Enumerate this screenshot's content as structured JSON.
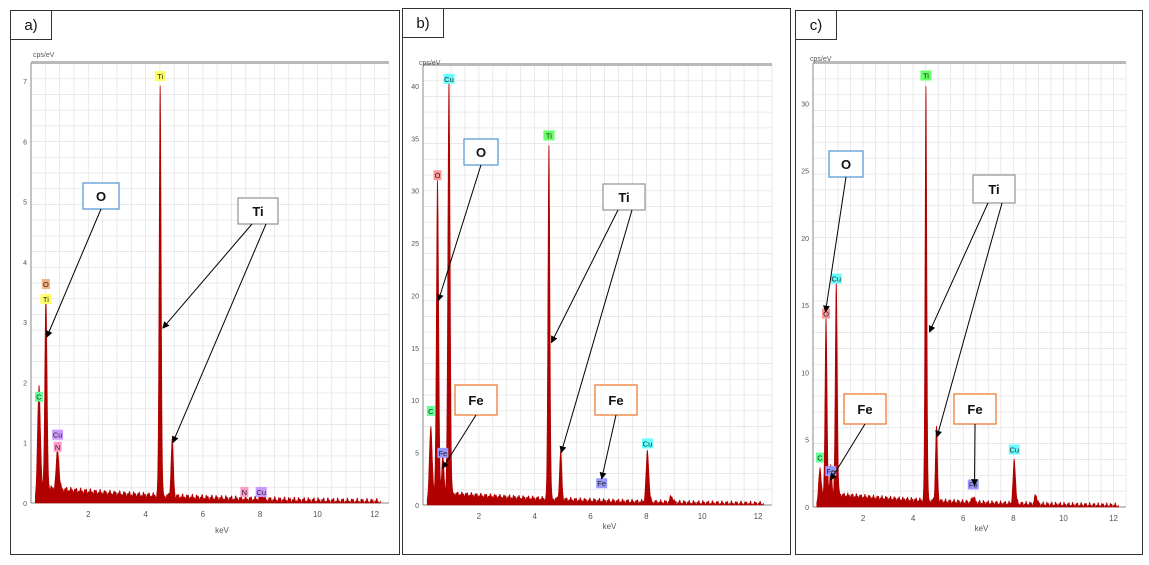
{
  "colors": {
    "spectrum": "#b00000",
    "grid": "#e4e4e4",
    "topbar": "#b9b9b9",
    "box_o": "#5b9bd5",
    "box_ti": "#9a9a9a",
    "box_fe": "#ed7d31"
  },
  "chart_data": [
    {
      "type": "area",
      "panel_label": "a)",
      "ylabel": "cps/eV",
      "xlabel": "keV",
      "xlim": [
        0,
        12.5
      ],
      "ylim": [
        0,
        7.3
      ],
      "x_ticks": [
        "2",
        "4",
        "6",
        "8",
        "10",
        "12"
      ],
      "y_ticks": [
        "0",
        "1",
        "2",
        "3",
        "4",
        "5",
        "6",
        "7"
      ],
      "background_level": 0.25,
      "peaks": [
        {
          "x": 0.28,
          "y": 1.85,
          "w": 0.05
        },
        {
          "x": 0.52,
          "y": 3.2,
          "w": 0.04
        },
        {
          "x": 0.93,
          "y": 0.65,
          "w": 0.05
        },
        {
          "x": 4.51,
          "y": 6.85,
          "w": 0.035
        },
        {
          "x": 4.93,
          "y": 0.95,
          "w": 0.04
        },
        {
          "x": 8.04,
          "y": 0.12,
          "w": 0.05
        }
      ],
      "element_labels": [
        {
          "text": "O",
          "x": 0.52,
          "y": 3.55,
          "color": "#f4b183"
        },
        {
          "text": "Ti",
          "x": 0.52,
          "y": 3.3,
          "color": "#ffff66"
        },
        {
          "text": "C",
          "x": 0.28,
          "y": 1.68,
          "color": "#66ff99"
        },
        {
          "text": "Cu",
          "x": 0.93,
          "y": 1.05,
          "color": "#cc99ff"
        },
        {
          "text": "N",
          "x": 0.93,
          "y": 0.85,
          "color": "#ff99cc"
        },
        {
          "text": "Ti",
          "x": 4.51,
          "y": 7.0,
          "color": "#ffff66"
        },
        {
          "text": "N",
          "x": 7.45,
          "y": 0.1,
          "color": "#ff99cc"
        },
        {
          "text": "Cu",
          "x": 8.04,
          "y": 0.1,
          "color": "#cc99ff"
        }
      ],
      "annotations": [
        {
          "text": "O",
          "style": "o",
          "arrows": [
            {
              "x": 0.55,
              "y": 2.75
            }
          ]
        },
        {
          "text": "Ti",
          "style": "ti",
          "arrows": [
            {
              "x": 4.6,
              "y": 2.9
            },
            {
              "x": 4.95,
              "y": 1.0
            }
          ]
        }
      ]
    },
    {
      "type": "area",
      "panel_label": "b)",
      "ylabel": "cps/eV",
      "xlabel": "keV",
      "xlim": [
        0,
        12.5
      ],
      "ylim": [
        0,
        42
      ],
      "x_ticks": [
        "2",
        "4",
        "6",
        "8",
        "10",
        "12"
      ],
      "y_ticks": [
        "0",
        "5",
        "10",
        "15",
        "20",
        "25",
        "30",
        "35",
        "40"
      ],
      "background_level": 1.2,
      "peaks": [
        {
          "x": 0.28,
          "y": 7.0,
          "w": 0.05
        },
        {
          "x": 0.52,
          "y": 30.0,
          "w": 0.04
        },
        {
          "x": 0.71,
          "y": 3.5,
          "w": 0.04
        },
        {
          "x": 0.93,
          "y": 39.5,
          "w": 0.04
        },
        {
          "x": 4.51,
          "y": 34.0,
          "w": 0.035
        },
        {
          "x": 4.93,
          "y": 4.6,
          "w": 0.04
        },
        {
          "x": 8.04,
          "y": 4.8,
          "w": 0.05
        },
        {
          "x": 8.9,
          "y": 0.6,
          "w": 0.05
        }
      ],
      "element_labels": [
        {
          "text": "C",
          "x": 0.28,
          "y": 8.5,
          "color": "#66ff99"
        },
        {
          "text": "O",
          "x": 0.52,
          "y": 31.0,
          "color": "#ff9999"
        },
        {
          "text": "Fe",
          "x": 0.71,
          "y": 4.5,
          "color": "#9999ff"
        },
        {
          "text": "Cu",
          "x": 0.93,
          "y": 40.2,
          "color": "#66ffff"
        },
        {
          "text": "Ti",
          "x": 4.51,
          "y": 34.8,
          "color": "#66ff66"
        },
        {
          "text": "Fe",
          "x": 6.4,
          "y": 1.6,
          "color": "#9999ff"
        },
        {
          "text": "Cu",
          "x": 8.04,
          "y": 5.4,
          "color": "#66ffff"
        }
      ],
      "annotations": [
        {
          "text": "O",
          "style": "o",
          "arrows": [
            {
              "x": 0.55,
              "y": 19.5
            }
          ]
        },
        {
          "text": "Ti",
          "style": "ti",
          "arrows": [
            {
              "x": 4.6,
              "y": 15.5
            },
            {
              "x": 4.95,
              "y": 5.0
            }
          ]
        },
        {
          "text": "Fe",
          "style": "fe",
          "arrows": [
            {
              "x": 0.7,
              "y": 3.5
            }
          ]
        },
        {
          "text": "Fe",
          "style": "fe",
          "arrows": [
            {
              "x": 6.4,
              "y": 2.5
            }
          ]
        }
      ]
    },
    {
      "type": "area",
      "panel_label": "c)",
      "ylabel": "cps/eV",
      "xlabel": "keV",
      "xlim": [
        0,
        12.5
      ],
      "ylim": [
        0,
        33
      ],
      "x_ticks": [
        "2",
        "4",
        "6",
        "8",
        "10",
        "12"
      ],
      "y_ticks": [
        "0",
        "5",
        "10",
        "15",
        "20",
        "25",
        "30"
      ],
      "background_level": 1.0,
      "peaks": [
        {
          "x": 0.28,
          "y": 2.5,
          "w": 0.05
        },
        {
          "x": 0.52,
          "y": 13.2,
          "w": 0.04
        },
        {
          "x": 0.71,
          "y": 2.0,
          "w": 0.04
        },
        {
          "x": 0.93,
          "y": 15.8,
          "w": 0.04
        },
        {
          "x": 4.51,
          "y": 31.0,
          "w": 0.035
        },
        {
          "x": 4.93,
          "y": 5.5,
          "w": 0.04
        },
        {
          "x": 6.4,
          "y": 0.45,
          "w": 0.05
        },
        {
          "x": 8.04,
          "y": 3.2,
          "w": 0.05
        },
        {
          "x": 8.9,
          "y": 0.7,
          "w": 0.05
        }
      ],
      "element_labels": [
        {
          "text": "C",
          "x": 0.28,
          "y": 3.3,
          "color": "#66ff99"
        },
        {
          "text": "O",
          "x": 0.52,
          "y": 14.0,
          "color": "#ff9999"
        },
        {
          "text": "Fe",
          "x": 0.71,
          "y": 2.3,
          "color": "#9999ff"
        },
        {
          "text": "Cu",
          "x": 0.93,
          "y": 16.6,
          "color": "#66ffff"
        },
        {
          "text": "Ti",
          "x": 4.51,
          "y": 31.7,
          "color": "#66ff66"
        },
        {
          "text": "Fe",
          "x": 6.4,
          "y": 1.3,
          "color": "#9999ff"
        },
        {
          "text": "Cu",
          "x": 8.04,
          "y": 3.9,
          "color": "#66ffff"
        }
      ],
      "annotations": [
        {
          "text": "O",
          "style": "o",
          "arrows": [
            {
              "x": 0.5,
              "y": 14.5
            }
          ]
        },
        {
          "text": "Ti",
          "style": "ti",
          "arrows": [
            {
              "x": 4.65,
              "y": 13.0
            },
            {
              "x": 4.95,
              "y": 5.2
            }
          ]
        },
        {
          "text": "Fe",
          "style": "fe",
          "arrows": [
            {
              "x": 0.7,
              "y": 2.0
            }
          ]
        },
        {
          "text": "Fe",
          "style": "fe",
          "arrows": [
            {
              "x": 6.45,
              "y": 1.6
            }
          ]
        }
      ]
    }
  ]
}
